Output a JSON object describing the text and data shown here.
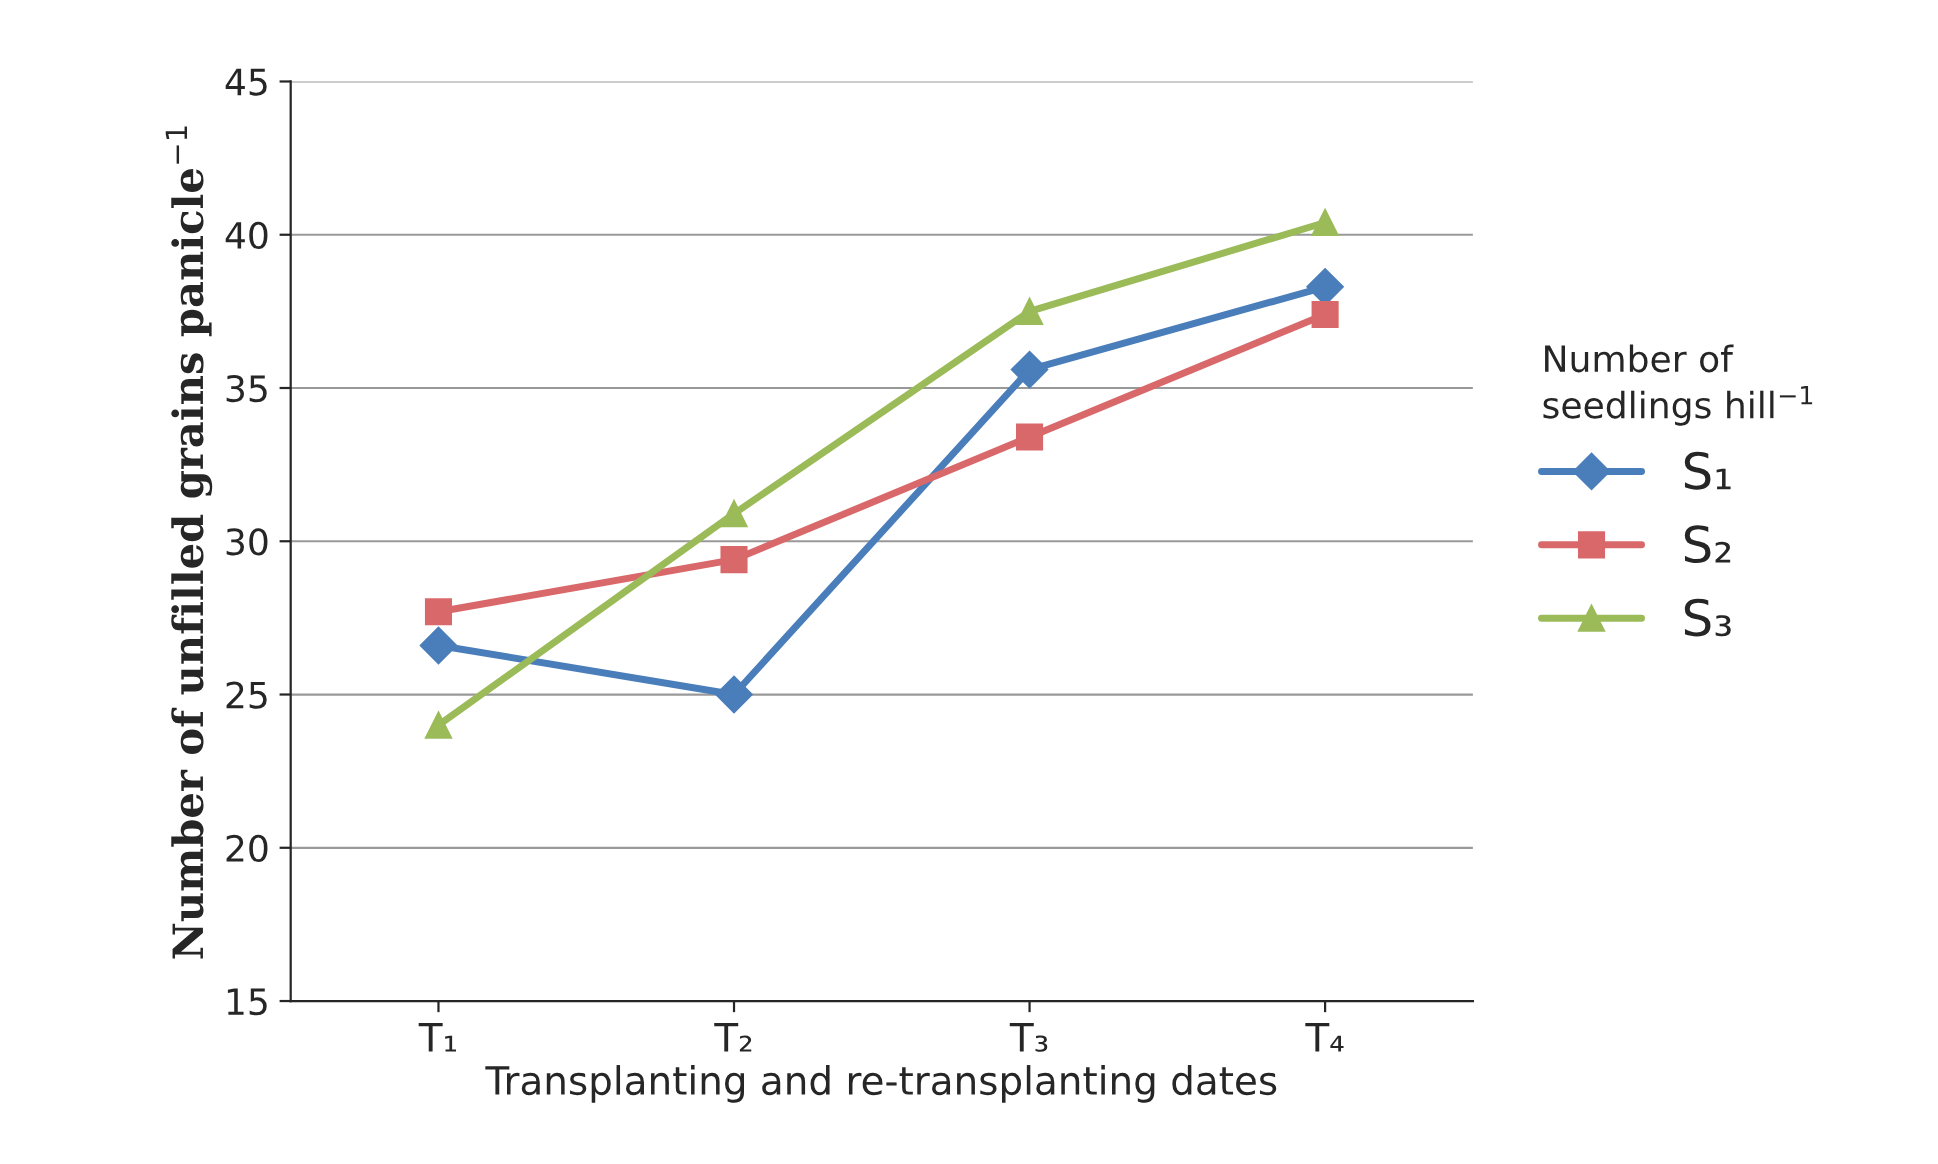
{
  "chart_data": {
    "type": "line",
    "xlabel": "Transplanting and re-transplanting dates",
    "ylabel": "Number of unfilled grains panicle$^{−1}$",
    "legend_title": "Number of\nseedlings hill$^{−1}$",
    "categories": [
      "T₁",
      "T₂",
      "T₃",
      "T₄"
    ],
    "series": [
      {
        "name": "S₁",
        "color": "#4a7ebb",
        "marker": "diamond",
        "values": [
          26.6,
          25.0,
          35.6,
          38.3
        ]
      },
      {
        "name": "S₂",
        "color": "#d9686a",
        "marker": "square",
        "values": [
          27.7,
          29.4,
          33.4,
          37.4
        ]
      },
      {
        "name": "S₃",
        "color": "#9bbb59",
        "marker": "triangle",
        "values": [
          24.0,
          30.9,
          37.5,
          40.4
        ]
      }
    ],
    "ylim": [
      15,
      45
    ],
    "yticks": [
      15,
      20,
      25,
      30,
      35,
      40,
      45
    ],
    "grid": "y",
    "legend": "right",
    "line_style": "solid"
  }
}
